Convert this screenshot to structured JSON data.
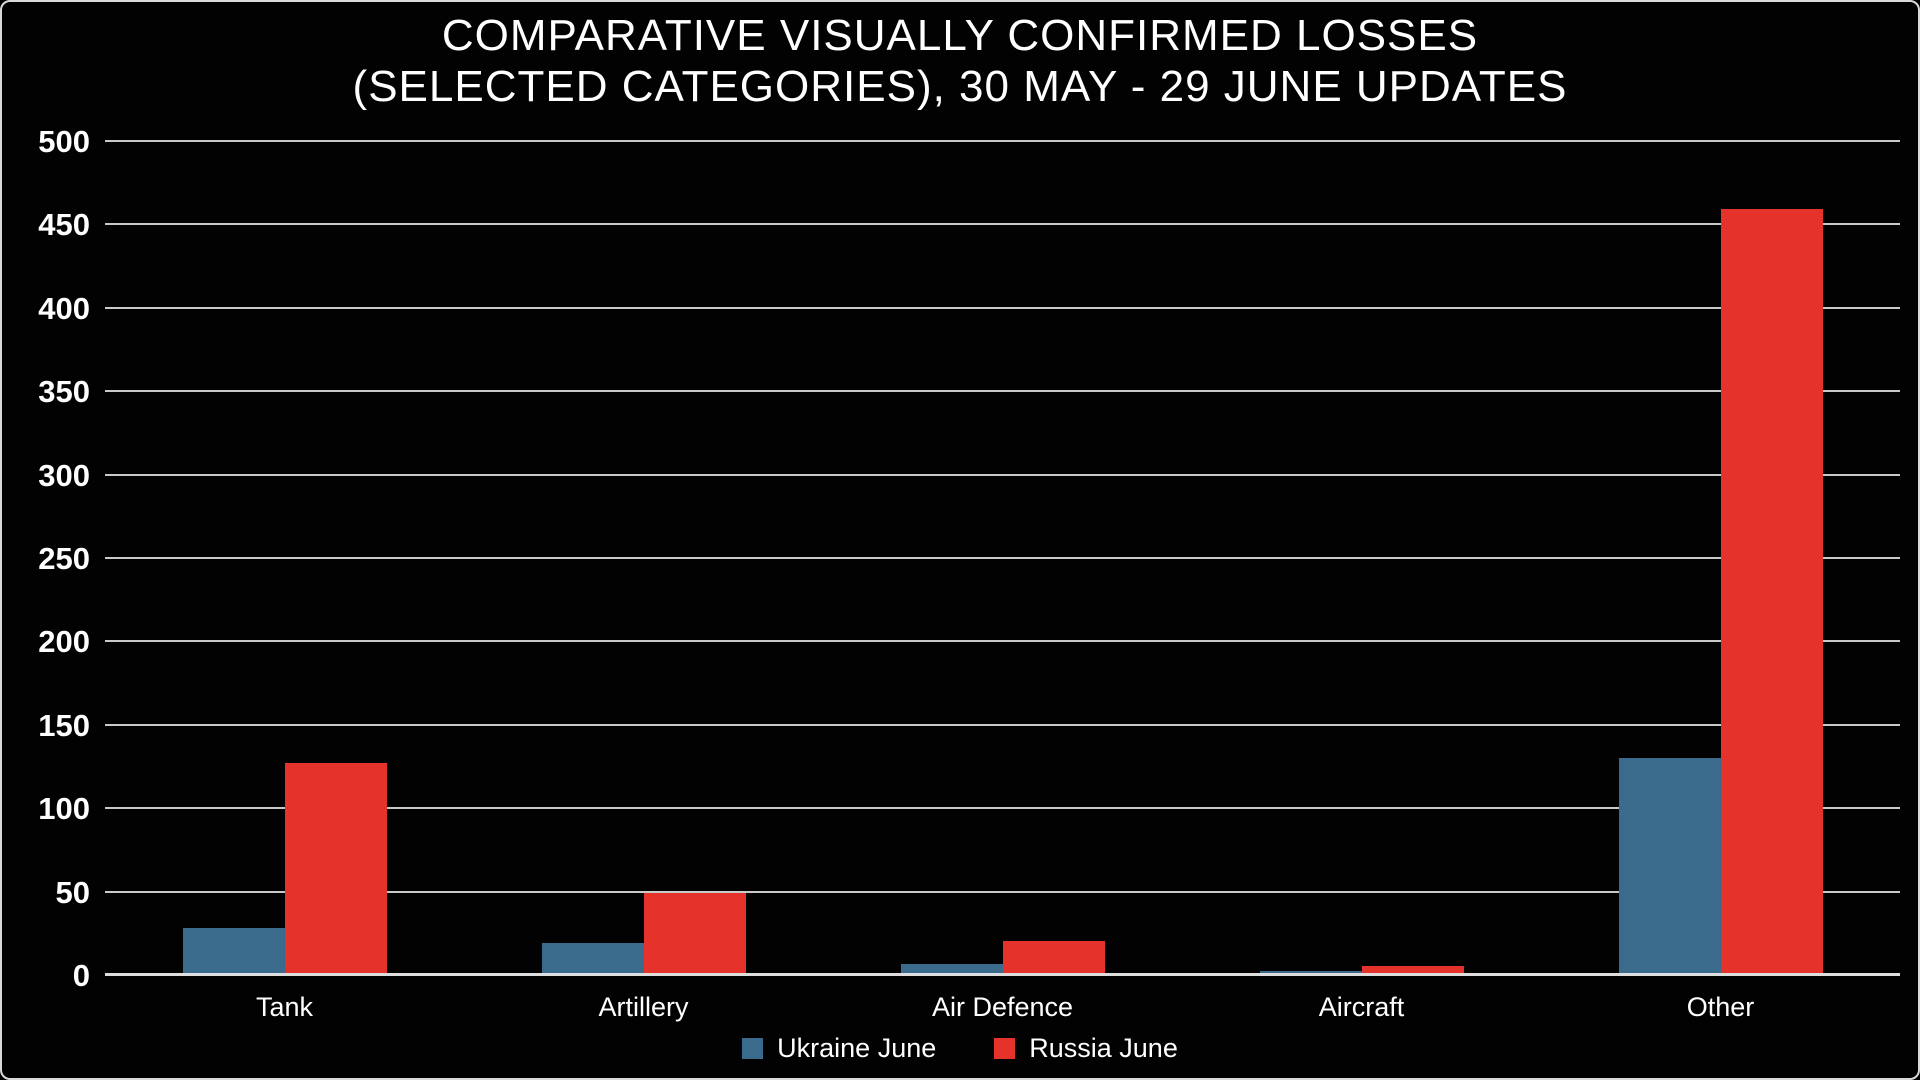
{
  "colors": {
    "background": "#020202",
    "frame_border": "#d9d9d9",
    "text": "#ffffff",
    "gridline": "#c9c9c9",
    "axis_line": "#dedede",
    "ukraine_blue": "#3a6b8c",
    "russia_red": "#e5332c"
  },
  "chart_data": {
    "type": "bar",
    "title_line1": "COMPARATIVE VISUALLY CONFIRMED LOSSES",
    "title_line2": "(SELECTED CATEGORIES), 30 MAY - 29 JUNE UPDATES",
    "categories": [
      "Tank",
      "Artillery",
      "Air Defence",
      "Aircraft",
      "Other"
    ],
    "series": [
      {
        "name": "Ukraine June",
        "color": "#3a6b8c",
        "values": [
          29,
          20,
          7,
          3,
          131
        ]
      },
      {
        "name": "Russia June",
        "color": "#e5332c",
        "values": [
          128,
          50,
          21,
          6,
          460
        ]
      }
    ],
    "xlabel": "",
    "ylabel": "",
    "ylim": [
      0,
      500
    ],
    "ytick_step": 50,
    "ytick_labels": [
      "0",
      "50",
      "100",
      "150",
      "200",
      "250",
      "300",
      "350",
      "400",
      "450",
      "500"
    ],
    "grid": "horizontal",
    "legend_position": "bottom"
  }
}
